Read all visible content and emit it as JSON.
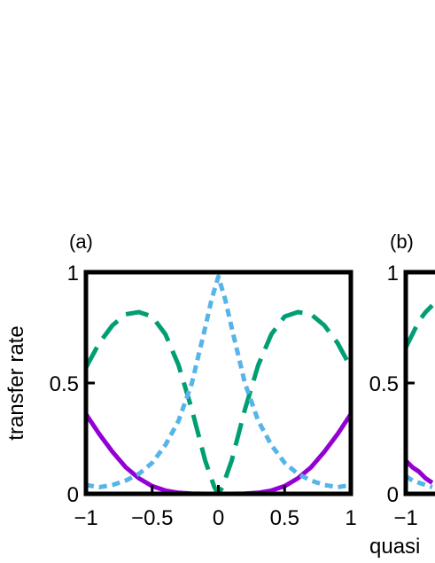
{
  "chart_data": [
    {
      "type": "line",
      "panel_label": "(a)",
      "ylabel": "transfer rate",
      "xlabel": "",
      "xlim": [
        -1,
        1
      ],
      "ylim": [
        0,
        1
      ],
      "x_ticks": [
        -1,
        -0.5,
        0,
        0.5,
        1
      ],
      "x_tick_labels": [
        "−1",
        "−0.5",
        "0",
        "0.5",
        "1"
      ],
      "y_ticks": [
        0,
        0.5,
        1
      ],
      "y_tick_labels": [
        "0",
        "0.5",
        "1"
      ],
      "grid": false,
      "legend": "none",
      "series": [
        {
          "color": "#9400d3",
          "style": "solid",
          "x": [
            -1,
            -0.9,
            -0.8,
            -0.7,
            -0.6,
            -0.5,
            -0.4,
            -0.3,
            -0.2,
            -0.1,
            0,
            0.1,
            0.2,
            0.3,
            0.4,
            0.5,
            0.6,
            0.7,
            0.8,
            0.9,
            1
          ],
          "y": [
            0.36,
            0.27,
            0.19,
            0.12,
            0.07,
            0.035,
            0.015,
            0.005,
            0.001,
            0.0,
            0.0,
            0.0,
            0.001,
            0.005,
            0.015,
            0.035,
            0.07,
            0.12,
            0.19,
            0.27,
            0.36
          ]
        },
        {
          "color": "#009e73",
          "style": "dashed",
          "x": [
            -1,
            -0.9,
            -0.8,
            -0.7,
            -0.6,
            -0.5,
            -0.4,
            -0.3,
            -0.2,
            -0.1,
            -0.03,
            0,
            0.03,
            0.1,
            0.2,
            0.3,
            0.4,
            0.5,
            0.6,
            0.7,
            0.8,
            0.9,
            1
          ],
          "y": [
            0.57,
            0.68,
            0.76,
            0.81,
            0.82,
            0.8,
            0.72,
            0.58,
            0.38,
            0.15,
            0.03,
            0.0,
            0.03,
            0.15,
            0.38,
            0.58,
            0.72,
            0.8,
            0.82,
            0.81,
            0.76,
            0.68,
            0.57
          ]
        },
        {
          "color": "#56b4e9",
          "style": "dotted",
          "x": [
            -1,
            -0.9,
            -0.8,
            -0.7,
            -0.6,
            -0.5,
            -0.4,
            -0.3,
            -0.2,
            -0.1,
            -0.05,
            0,
            0.05,
            0.1,
            0.2,
            0.3,
            0.4,
            0.5,
            0.6,
            0.7,
            0.8,
            0.9,
            1
          ],
          "y": [
            0.04,
            0.03,
            0.04,
            0.06,
            0.09,
            0.14,
            0.22,
            0.33,
            0.5,
            0.75,
            0.88,
            0.98,
            0.88,
            0.75,
            0.5,
            0.33,
            0.22,
            0.14,
            0.09,
            0.06,
            0.04,
            0.03,
            0.04
          ]
        }
      ]
    },
    {
      "type": "line",
      "panel_label": "(b)",
      "xlabel": "quasi",
      "xlim": [
        -1,
        1
      ],
      "ylim": [
        0,
        1
      ],
      "x_ticks": [
        -1
      ],
      "x_tick_labels": [
        "−1"
      ],
      "y_ticks": [
        0,
        0.5,
        1
      ],
      "y_tick_labels": [
        "0",
        "0.5",
        "1"
      ],
      "grid": false,
      "legend": "none",
      "series": [
        {
          "color": "#9400d3",
          "style": "solid",
          "x": [
            -1,
            -0.95,
            -0.9,
            -0.85,
            -0.8
          ],
          "y": [
            0.15,
            0.12,
            0.1,
            0.07,
            0.05
          ]
        },
        {
          "color": "#009e73",
          "style": "dashed",
          "x": [
            -1,
            -0.95,
            -0.9,
            -0.85,
            -0.8
          ],
          "y": [
            0.66,
            0.72,
            0.78,
            0.82,
            0.85
          ]
        },
        {
          "color": "#56b4e9",
          "style": "dotted",
          "x": [
            -1,
            -0.95,
            -0.9,
            -0.85,
            -0.8
          ],
          "y": [
            0.08,
            0.06,
            0.05,
            0.04,
            0.03
          ]
        }
      ]
    }
  ]
}
